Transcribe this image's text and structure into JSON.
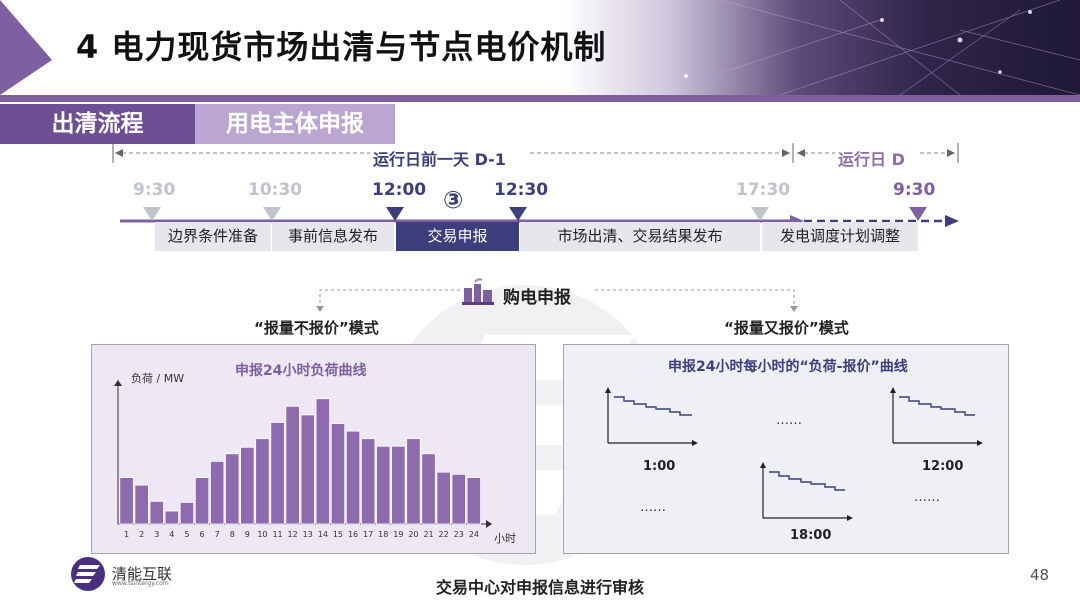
{
  "slide_title": "4 电力现货市场出清与节点电价机制",
  "tabs": [
    "出清流程",
    "用电主体申报"
  ],
  "timeline": {
    "span_day_before": "运行日前一天 D-1",
    "span_day": "运行日 D",
    "times": [
      "9:30",
      "10:30",
      "12:00",
      "12:30",
      "17:30",
      "9:30"
    ],
    "step_marker": "③",
    "segments": [
      "边界条件准备",
      "事前信息发布",
      "交易申报",
      "市场出清、交易结果发布",
      "发电调度计划调整"
    ]
  },
  "purchase_label": "购电申报",
  "left_panel": {
    "mode_title": "“报量不报价”模式",
    "chart_title": "申报24小时负荷曲线",
    "y_label": "负荷 / MW",
    "x_unit": "小时"
  },
  "right_panel": {
    "mode_title": "“报量又报价”模式",
    "chart_title": "申报24小时每小时的“负荷-报价”曲线",
    "mini_labels": [
      "1:00",
      "12:00",
      "18:00"
    ],
    "ellipses": [
      "……",
      "……",
      "……"
    ]
  },
  "chart_data": {
    "type": "bar",
    "categories": [
      "1",
      "2",
      "3",
      "4",
      "5",
      "6",
      "7",
      "8",
      "9",
      "10",
      "11",
      "12",
      "13",
      "14",
      "15",
      "16",
      "17",
      "18",
      "19",
      "20",
      "21",
      "22",
      "23",
      "24"
    ],
    "values": [
      4.3,
      3.6,
      2.1,
      1.2,
      2.0,
      4.3,
      5.8,
      6.5,
      7.1,
      7.9,
      9.4,
      10.9,
      10.1,
      11.6,
      9.3,
      8.6,
      7.9,
      7.2,
      7.2,
      7.9,
      6.5,
      4.8,
      4.6,
      4.3
    ],
    "xlabel": "小时",
    "ylabel": "负荷 / MW",
    "ylim": [
      0,
      12.5
    ],
    "title": "申报24小时负荷曲线",
    "color": "#8e6aaf"
  },
  "bottom_note": "交易中心对申报信息进行审核",
  "logo": {
    "name": "清能互联",
    "url": "www.tsintergy.com"
  },
  "page_number": "48",
  "colors": {
    "purple_dark": "#6f4f94",
    "purple_light": "#bba6d2",
    "navy": "#3c3f7c",
    "grey_marker": "#c0c4cc"
  }
}
